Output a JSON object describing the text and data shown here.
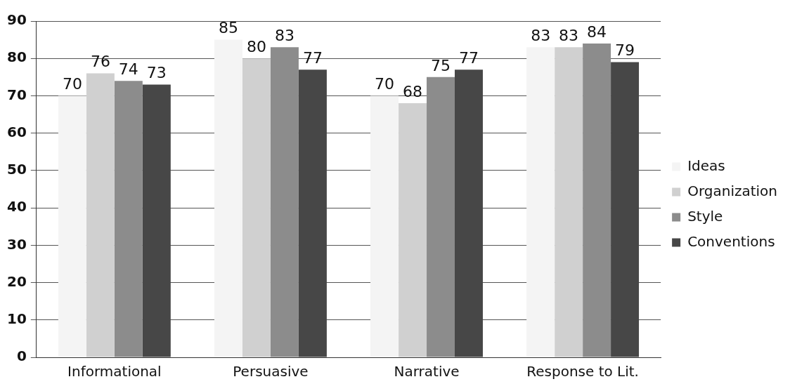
{
  "chart_data": {
    "type": "bar",
    "categories": [
      "Informational",
      "Persuasive",
      "Narrative",
      "Response to Lit."
    ],
    "series": [
      {
        "name": "Ideas",
        "color": "#f4f4f4",
        "values": [
          70,
          85,
          70,
          83
        ]
      },
      {
        "name": "Organization",
        "color": "#d0d0d0",
        "values": [
          76,
          80,
          68,
          83
        ]
      },
      {
        "name": "Style",
        "color": "#8c8c8c",
        "values": [
          74,
          83,
          75,
          84
        ]
      },
      {
        "name": "Conventions",
        "color": "#474747",
        "values": [
          73,
          77,
          77,
          79
        ]
      }
    ],
    "ylim": [
      0,
      90
    ],
    "yticks": [
      0,
      10,
      20,
      30,
      40,
      50,
      60,
      70,
      80,
      90
    ],
    "grid": "y",
    "legend": "right",
    "data_labels": true
  }
}
